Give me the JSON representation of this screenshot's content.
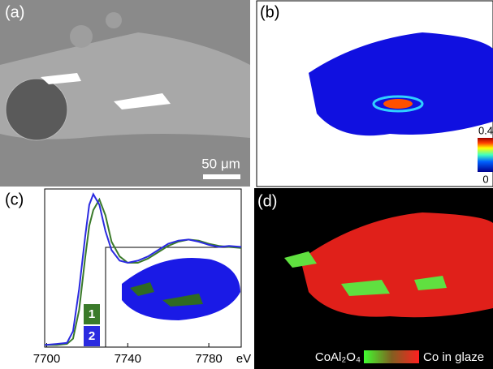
{
  "panels": {
    "a": "(a)",
    "b": "(b)",
    "c": "(c)",
    "d": "(d)"
  },
  "scale_bar": "50 μm",
  "colorbar": {
    "ticks": [
      0,
      0.4
    ]
  },
  "map_legend": {
    "left": "CoAl₂O₄",
    "right": "Co in glaze"
  },
  "chart_data": {
    "type": "line",
    "x_label": "eV",
    "x": [
      7699,
      7705,
      7710,
      7713,
      7716,
      7719,
      7721,
      7723,
      7726,
      7729,
      7732,
      7736,
      7740,
      7745,
      7750,
      7755,
      7760,
      7765,
      7770,
      7775,
      7780,
      7785,
      7790,
      7796
    ],
    "series": [
      {
        "name": "1",
        "color": "#3a7a2a",
        "values": [
          0.02,
          0.02,
          0.03,
          0.08,
          0.35,
          0.85,
          1.15,
          1.3,
          1.4,
          1.25,
          1.0,
          0.86,
          0.8,
          0.8,
          0.84,
          0.9,
          0.96,
          1.0,
          1.02,
          1.01,
          0.98,
          0.96,
          0.95,
          0.94
        ]
      },
      {
        "name": "2",
        "color": "#2a2ae0",
        "values": [
          0.02,
          0.03,
          0.04,
          0.15,
          0.55,
          1.05,
          1.35,
          1.45,
          1.35,
          1.1,
          0.92,
          0.82,
          0.8,
          0.82,
          0.86,
          0.92,
          0.98,
          1.01,
          1.02,
          1.0,
          0.97,
          0.95,
          0.96,
          0.95
        ]
      }
    ],
    "xlim": [
      7699,
      7796
    ],
    "ylim": [
      0,
      1.5
    ],
    "xticks": [
      7700,
      7740,
      7780
    ]
  }
}
